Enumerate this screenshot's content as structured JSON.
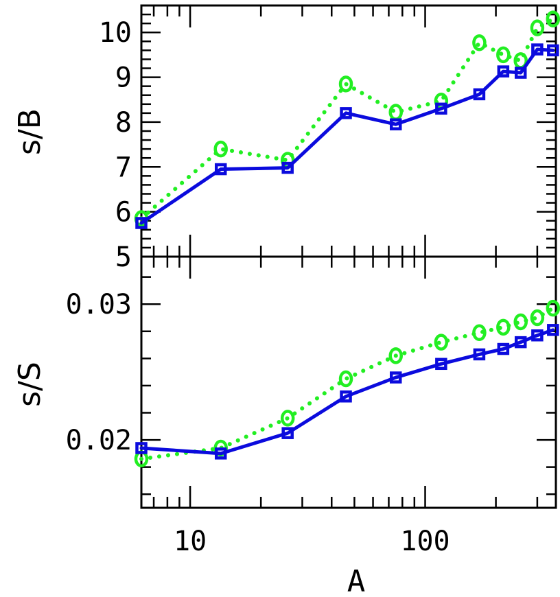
{
  "chart_data": [
    {
      "type": "line",
      "title": "",
      "xlabel": "A",
      "ylabel": "s/B",
      "xscale": "log",
      "xlim": [
        6.2,
        360
      ],
      "ylim": [
        5,
        10.6
      ],
      "yticks_major": [
        5,
        6,
        7,
        8,
        9,
        10
      ],
      "yticks_labels": [
        "5",
        "6",
        "7",
        "8",
        "9",
        "10"
      ],
      "xticks_major": [
        10,
        100
      ],
      "xticks_labels": [
        "10",
        "100"
      ],
      "grid": false,
      "legend": "none",
      "series": [
        {
          "line": "dotted",
          "marker": "circle",
          "color": "#22ee22",
          "x": [
            6.2,
            13.5,
            26,
            46,
            75,
            117,
            170,
            215,
            255,
            300,
            350
          ],
          "y": [
            5.85,
            7.4,
            7.15,
            8.85,
            8.22,
            8.47,
            9.77,
            9.5,
            9.37,
            10.1,
            10.3
          ]
        },
        {
          "line": "solid",
          "marker": "square",
          "color": "#0b0bdd",
          "x": [
            6.2,
            13.5,
            26,
            46,
            75,
            117,
            170,
            215,
            255,
            300,
            350
          ],
          "y": [
            5.75,
            6.95,
            6.98,
            8.2,
            7.95,
            8.3,
            8.62,
            9.13,
            9.1,
            9.62,
            9.6
          ]
        }
      ]
    },
    {
      "type": "line",
      "title": "",
      "xlabel": "A",
      "ylabel": "s/S",
      "xscale": "log",
      "xlim": [
        6.2,
        360
      ],
      "ylim": [
        0.015,
        0.0335
      ],
      "yticks_major": [
        0.02,
        0.03
      ],
      "yticks_labels": [
        "0.02",
        "0.03"
      ],
      "xticks_major": [
        10,
        100
      ],
      "xticks_labels": [
        "10",
        "100"
      ],
      "grid": false,
      "legend": "none",
      "series": [
        {
          "line": "dotted",
          "marker": "circle",
          "color": "#22ee22",
          "x": [
            6.2,
            13.5,
            26,
            46,
            75,
            117,
            170,
            215,
            255,
            300,
            350
          ],
          "y": [
            0.0186,
            0.0194,
            0.0216,
            0.0245,
            0.0262,
            0.0272,
            0.0279,
            0.0283,
            0.0287,
            0.029,
            0.0297
          ]
        },
        {
          "line": "solid",
          "marker": "square",
          "color": "#0b0bdd",
          "x": [
            6.2,
            13.5,
            26,
            46,
            75,
            117,
            170,
            215,
            255,
            300,
            350
          ],
          "y": [
            0.0194,
            0.019,
            0.0205,
            0.0232,
            0.0246,
            0.0256,
            0.0263,
            0.0267,
            0.0272,
            0.0277,
            0.0281
          ]
        }
      ]
    }
  ]
}
